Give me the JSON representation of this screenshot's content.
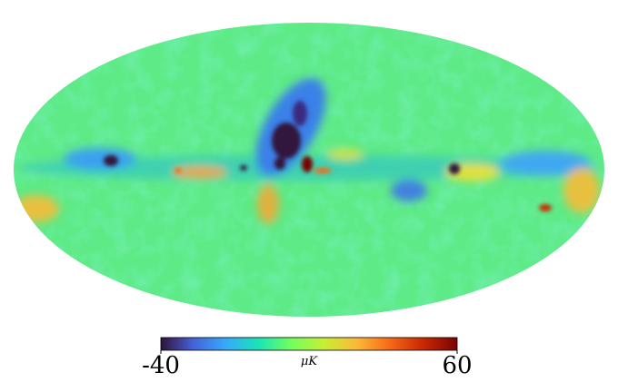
{
  "colorbar": {
    "min": -40,
    "max": 60,
    "unit": "μK"
  }
}
